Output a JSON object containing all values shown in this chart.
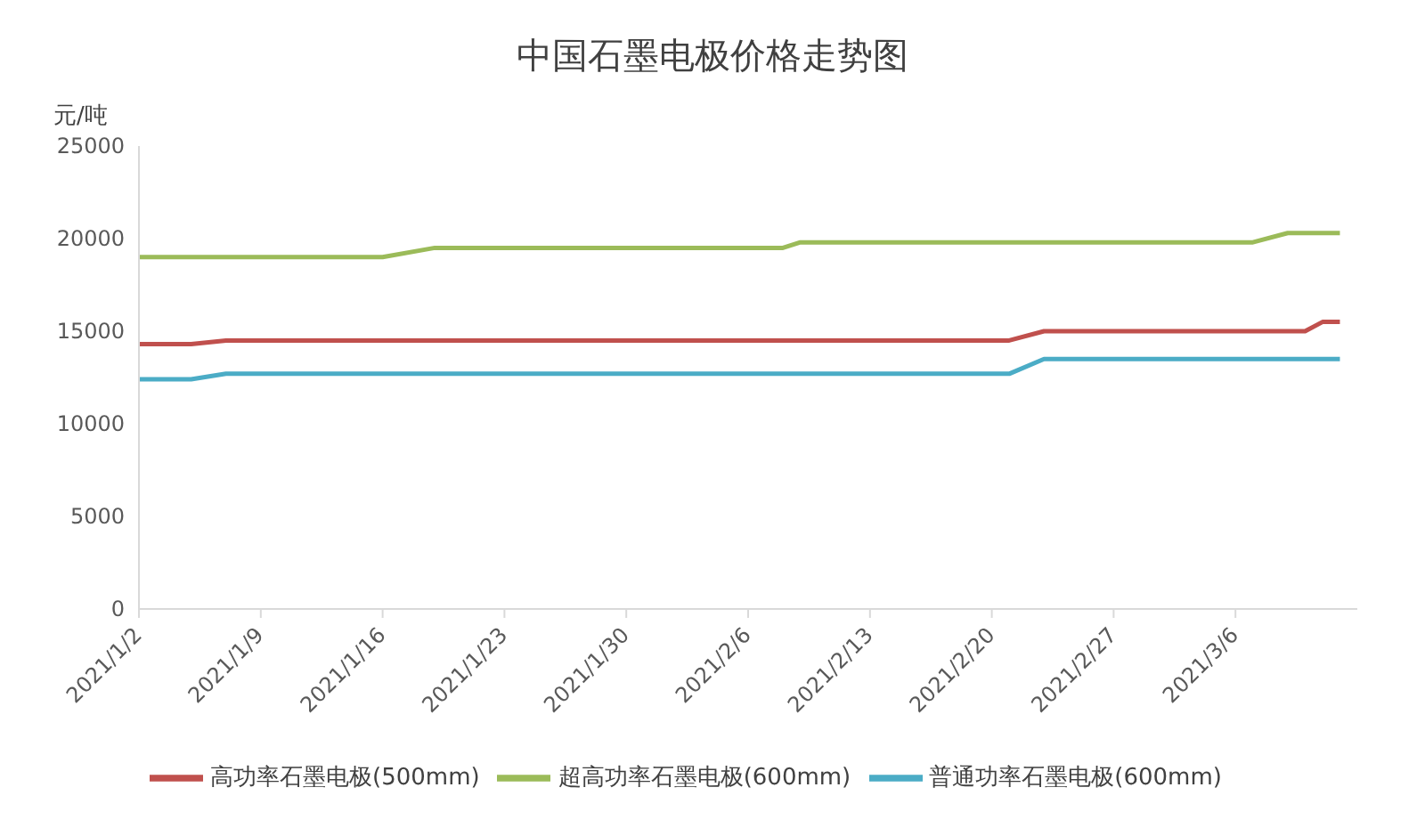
{
  "chart_data": {
    "type": "line",
    "title": "中国石墨电极价格走势图",
    "ylabel": "元/吨",
    "xlim": [
      "2021-01-02",
      "2021-03-13"
    ],
    "xticks": [
      {
        "value": "2021-01-02",
        "label": "2021/1/2"
      },
      {
        "value": "2021-01-09",
        "label": "2021/1/9"
      },
      {
        "value": "2021-01-16",
        "label": "2021/1/16"
      },
      {
        "value": "2021-01-23",
        "label": "2021/1/23"
      },
      {
        "value": "2021-01-30",
        "label": "2021/1/30"
      },
      {
        "value": "2021-02-06",
        "label": "2021/2/6"
      },
      {
        "value": "2021-02-13",
        "label": "2021/2/13"
      },
      {
        "value": "2021-02-20",
        "label": "2021/2/20"
      },
      {
        "value": "2021-02-27",
        "label": "2021/2/27"
      },
      {
        "value": "2021-03-06",
        "label": "2021/3/6"
      }
    ],
    "ylim": [
      0,
      25000
    ],
    "yticks": [
      0,
      5000,
      10000,
      15000,
      20000,
      25000
    ],
    "grid": false,
    "legend": "bottom",
    "marker": "none",
    "line_style": "solid",
    "series": [
      {
        "name": "高功率石墨电极(500mm)",
        "color": "#c0504d",
        "x": [
          "2021-01-02",
          "2021-01-05",
          "2021-01-07",
          "2021-02-21",
          "2021-02-23",
          "2021-03-10",
          "2021-03-11",
          "2021-03-12"
        ],
        "values": [
          14300,
          14300,
          14500,
          14500,
          15000,
          15000,
          15500,
          15500
        ]
      },
      {
        "name": "超高功率石墨电极(600mm)",
        "color": "#9bbb59",
        "x": [
          "2021-01-02",
          "2021-01-16",
          "2021-01-19",
          "2021-02-08",
          "2021-02-09",
          "2021-03-07",
          "2021-03-09",
          "2021-03-12"
        ],
        "values": [
          19000,
          19000,
          19500,
          19500,
          19800,
          19800,
          20300,
          20300
        ]
      },
      {
        "name": "普通功率石墨电极(600mm)",
        "color": "#4bacc6",
        "x": [
          "2021-01-02",
          "2021-01-05",
          "2021-01-07",
          "2021-02-21",
          "2021-02-23",
          "2021-03-12"
        ],
        "values": [
          12400,
          12400,
          12700,
          12700,
          13500,
          13500
        ]
      }
    ]
  }
}
